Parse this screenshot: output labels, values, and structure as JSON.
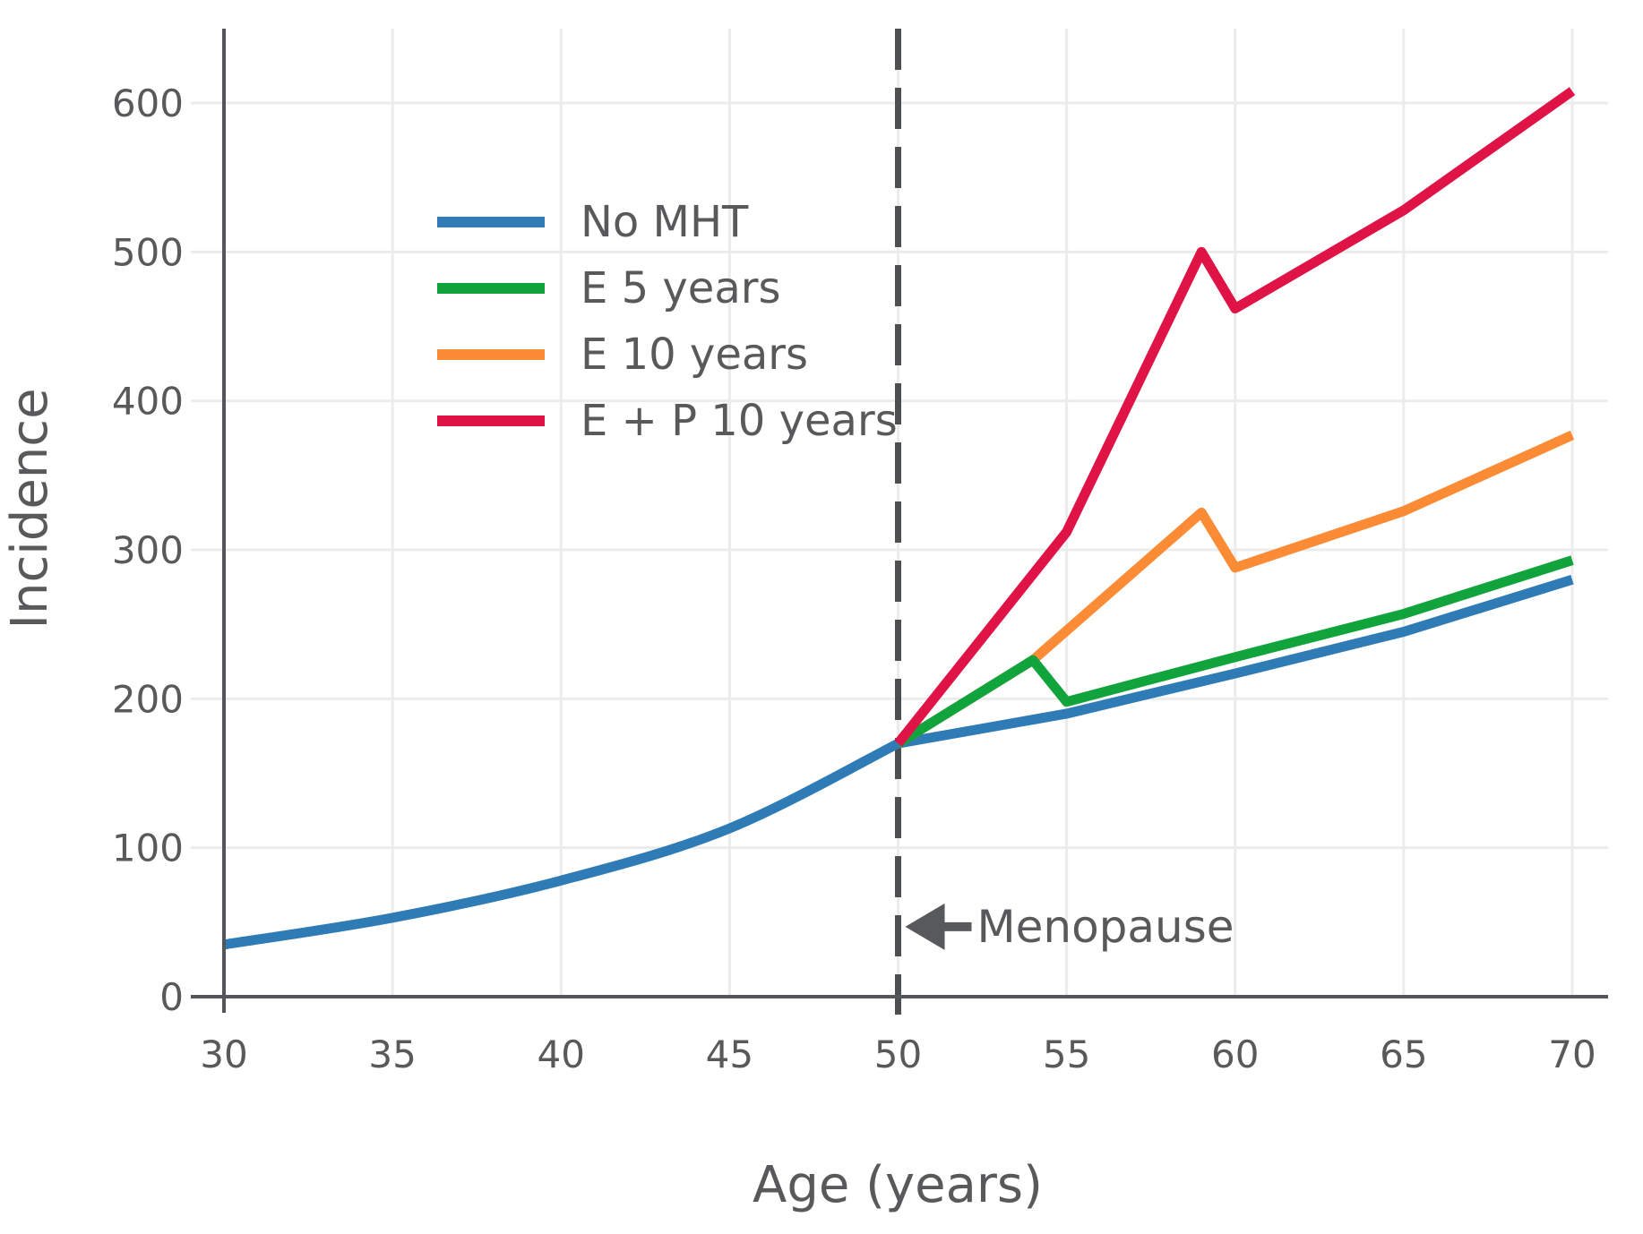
{
  "figure": {
    "background": "#ffffff",
    "text_color": "#58595b",
    "grid_color": "#ececec",
    "axis_color": "#55565a",
    "dashed_line_color": "#4d4e50"
  },
  "chart_data": {
    "type": "line",
    "title": "",
    "xlabel": "Age (years)",
    "ylabel": "Incidence",
    "xlim": [
      30,
      70
    ],
    "ylim": [
      0,
      650
    ],
    "x_ticks": [
      30,
      35,
      40,
      45,
      50,
      55,
      60,
      65,
      70
    ],
    "y_ticks": [
      0,
      100,
      200,
      300,
      400,
      500,
      600
    ],
    "grid": true,
    "legend_position": "upper-left-inside",
    "series": [
      {
        "name": "No MHT",
        "color": "#2f7bb6",
        "smooth": true,
        "points": [
          [
            30,
            35
          ],
          [
            35,
            53
          ],
          [
            40,
            78
          ],
          [
            45,
            113
          ],
          [
            50,
            170
          ],
          [
            55,
            190
          ],
          [
            60,
            217
          ],
          [
            65,
            245
          ],
          [
            70,
            280
          ]
        ]
      },
      {
        "name": "E 5 years",
        "color": "#12a43c",
        "smooth": false,
        "points": [
          [
            50,
            170
          ],
          [
            54,
            226
          ],
          [
            55,
            198
          ],
          [
            60,
            228
          ],
          [
            65,
            257
          ],
          [
            70,
            293
          ]
        ]
      },
      {
        "name": "E 10 years",
        "color": "#fb8c35",
        "smooth": false,
        "points": [
          [
            50,
            170
          ],
          [
            54,
            226
          ],
          [
            59,
            325
          ],
          [
            60,
            288
          ],
          [
            65,
            326
          ],
          [
            70,
            377
          ]
        ]
      },
      {
        "name": "E + P 10 years",
        "color": "#e01347",
        "smooth": false,
        "points": [
          [
            50,
            170
          ],
          [
            55,
            312
          ],
          [
            59,
            500
          ],
          [
            60,
            462
          ],
          [
            65,
            528
          ],
          [
            70,
            608
          ]
        ]
      }
    ],
    "annotations": [
      {
        "type": "vline",
        "x": 50,
        "style": "dashed"
      },
      {
        "type": "arrow-label",
        "label": "Menopause",
        "x": 50,
        "y": 47,
        "direction": "left"
      }
    ]
  }
}
